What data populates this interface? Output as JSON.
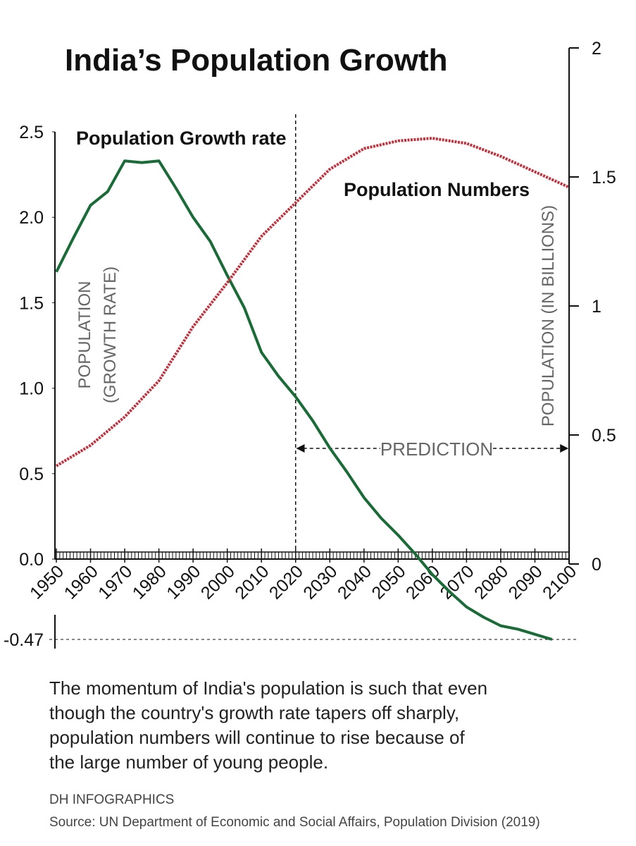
{
  "chart_data": {
    "type": "line",
    "title": "India’s Population Growth",
    "y_label_lines": [
      "POPULATION",
      "(GROWTH RATE)"
    ],
    "y2_label": "POPULATION (IN BILLIONS)",
    "xlim": [
      1950,
      2100
    ],
    "xticks": [
      1950,
      1960,
      1970,
      1980,
      1990,
      2000,
      2010,
      2020,
      2030,
      2040,
      2050,
      2060,
      2070,
      2080,
      2090,
      2100
    ],
    "ylim": [
      -0.47,
      2.5
    ],
    "yticks": [
      -0.47,
      {
        "value": 0,
        "label": "0.0"
      },
      0.5,
      {
        "value": 1,
        "label": "1.0"
      },
      1.5,
      {
        "value": 2,
        "label": "2.0"
      },
      2.5
    ],
    "y2lim": [
      0,
      2
    ],
    "y2ticks": [
      0,
      0.5,
      1,
      1.5,
      2
    ],
    "series": [
      {
        "name": "Population Growth rate",
        "color": "#1a6b38",
        "axis": "y",
        "x": [
          1950,
          1955,
          1960,
          1965,
          1970,
          1975,
          1980,
          1985,
          1990,
          1995,
          2000,
          2005,
          2010,
          2015,
          2020,
          2025,
          2030,
          2035,
          2040,
          2045,
          2050,
          2055,
          2060,
          2065,
          2070,
          2075,
          2080,
          2085,
          2090,
          2095
        ],
        "values": [
          1.68,
          1.88,
          2.07,
          2.15,
          2.33,
          2.32,
          2.33,
          2.17,
          2.0,
          1.86,
          1.66,
          1.47,
          1.21,
          1.07,
          0.95,
          0.81,
          0.65,
          0.51,
          0.36,
          0.24,
          0.14,
          0.03,
          -0.09,
          -0.19,
          -0.28,
          -0.34,
          -0.39,
          -0.41,
          -0.44,
          -0.47
        ]
      },
      {
        "name": "Population Numbers",
        "color": "#c0303c",
        "axis": "y2",
        "x": [
          1950,
          1960,
          1970,
          1980,
          1990,
          2000,
          2010,
          2020,
          2030,
          2040,
          2050,
          2060,
          2070,
          2080,
          2090,
          2100
        ],
        "values": [
          0.38,
          0.46,
          0.57,
          0.71,
          0.92,
          1.09,
          1.27,
          1.4,
          1.53,
          1.61,
          1.64,
          1.65,
          1.63,
          1.58,
          1.52,
          1.46
        ]
      }
    ],
    "prediction": {
      "label": "PREDICTION",
      "from": 2020,
      "to": 2100
    },
    "caption_lines": [
      "The momentum of India's population is such that even",
      "though the country's growth rate tapers off sharply,",
      "population numbers will continue to rise because of",
      "the large number of young people."
    ],
    "credit": "DH INFOGRAPHICS",
    "source": "Source: UN Department of Economic and Social Affairs, Population Division (2019)"
  }
}
